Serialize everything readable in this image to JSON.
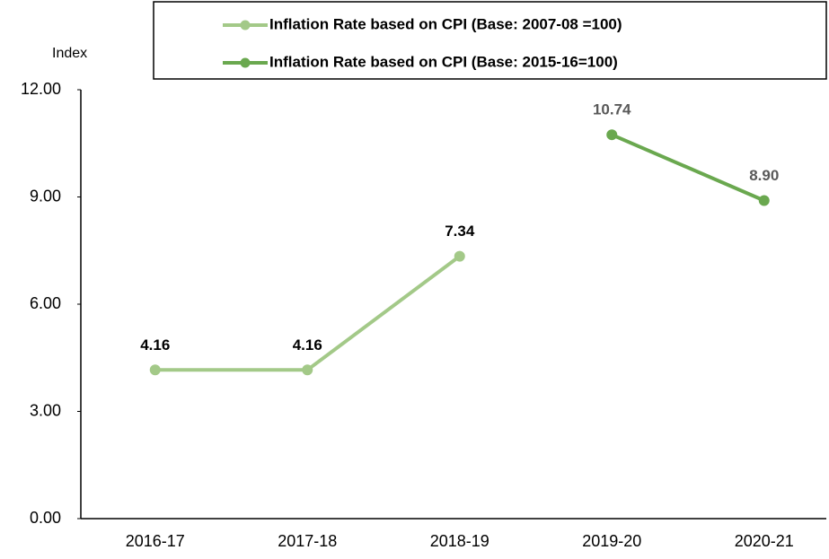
{
  "chart_data": {
    "type": "line",
    "y_label": "Index",
    "categories": [
      "2016-17",
      "2017-18",
      "2018-19",
      "2019-20",
      "2020-21"
    ],
    "series": [
      {
        "name": "Inflation Rate based on CPI (Base: 2007-08 =100)",
        "color": "#a3c988",
        "label_color": "#000000",
        "values": [
          4.16,
          4.16,
          7.34,
          null,
          null
        ],
        "value_labels": [
          "4.16",
          "4.16",
          "7.34",
          null,
          null
        ]
      },
      {
        "name": "Inflation Rate based on CPI (Base: 2015-16=100)",
        "color": "#6aa84f",
        "label_color": "#595959",
        "values": [
          null,
          null,
          null,
          10.74,
          8.9
        ],
        "value_labels": [
          null,
          null,
          null,
          "10.74",
          "8.90"
        ]
      }
    ],
    "ylim": [
      0,
      12
    ],
    "yticks": [
      {
        "value": 0,
        "label": "0.00"
      },
      {
        "value": 3,
        "label": "3.00"
      },
      {
        "value": 6,
        "label": "6.00"
      },
      {
        "value": 9,
        "label": "9.00"
      },
      {
        "value": 12,
        "label": "12.00"
      }
    ],
    "grid": false
  }
}
